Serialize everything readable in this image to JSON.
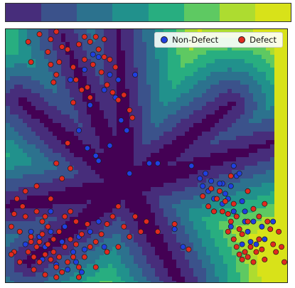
{
  "colorbar": {
    "colors": [
      "#472d7b",
      "#3b528b",
      "#2c728e",
      "#21918c",
      "#28ae80",
      "#5ec962",
      "#addc30",
      "#d8e219"
    ]
  },
  "palette": {
    "background_levels": [
      "#440154",
      "#472d7b",
      "#3b528b",
      "#2c728e",
      "#21918c",
      "#28ae80",
      "#5ec962",
      "#addc30",
      "#d8e219"
    ],
    "non_defect_color": "#1f3fe0",
    "defect_color": "#e02a1f"
  },
  "legend": {
    "non_defect_label": "Non-Defect",
    "defect_label": "Defect",
    "placement": "top-right"
  },
  "chart_data": {
    "type": "scatter",
    "title": "",
    "xlabel": "",
    "ylabel": "",
    "xlim": [
      0,
      100
    ],
    "ylim": [
      0,
      100
    ],
    "grid": false,
    "axes_ticks": "none",
    "background": "filled decision-region contours, 8 levels",
    "series": [
      {
        "name": "Non-Defect",
        "points": [
          [
            31,
            90
          ],
          [
            28,
            84
          ],
          [
            33,
            89
          ],
          [
            37,
            82
          ],
          [
            40,
            80
          ],
          [
            35,
            76
          ],
          [
            39,
            73
          ],
          [
            30,
            70
          ],
          [
            41,
            64
          ],
          [
            43,
            60
          ],
          [
            37,
            54
          ],
          [
            26,
            60
          ],
          [
            29,
            53
          ],
          [
            32,
            50
          ],
          [
            51,
            47
          ],
          [
            54,
            47
          ],
          [
            44,
            43
          ],
          [
            33,
            48
          ],
          [
            23,
            80
          ],
          [
            46,
            82
          ],
          [
            26,
            18
          ],
          [
            35,
            14
          ],
          [
            33,
            24
          ],
          [
            66,
            46
          ],
          [
            69,
            41
          ],
          [
            71,
            43
          ],
          [
            70,
            38
          ],
          [
            72,
            36
          ],
          [
            73,
            40
          ],
          [
            74,
            33
          ],
          [
            77,
            39
          ],
          [
            78,
            35
          ],
          [
            79,
            33
          ],
          [
            80,
            38
          ],
          [
            81,
            46
          ],
          [
            82,
            42
          ],
          [
            83,
            43
          ],
          [
            84,
            32
          ],
          [
            85,
            24
          ],
          [
            86,
            20
          ],
          [
            87,
            16
          ],
          [
            88,
            24
          ],
          [
            85,
            28
          ],
          [
            60,
            21
          ],
          [
            63,
            14
          ],
          [
            80,
            22
          ],
          [
            77,
            31
          ],
          [
            89,
            15
          ],
          [
            91,
            22
          ],
          [
            95,
            24
          ],
          [
            92,
            17
          ],
          [
            84,
            15
          ],
          [
            76,
            39
          ],
          [
            81,
            28
          ],
          [
            12,
            18
          ],
          [
            16,
            20
          ],
          [
            20,
            16
          ],
          [
            24,
            12
          ],
          [
            18,
            7
          ],
          [
            22,
            5
          ],
          [
            27,
            4
          ],
          [
            13,
            9
          ],
          [
            9,
            20
          ],
          [
            16,
            28
          ],
          [
            14,
            14
          ],
          [
            28,
            13
          ],
          [
            30,
            20
          ],
          [
            21,
            22
          ],
          [
            25,
            8
          ],
          [
            7,
            15
          ]
        ]
      },
      {
        "name": "Defect",
        "points": [
          [
            8,
            95
          ],
          [
            15,
            91
          ],
          [
            16,
            86
          ],
          [
            18,
            82
          ],
          [
            17,
            79
          ],
          [
            24,
            85
          ],
          [
            25,
            80
          ],
          [
            27,
            76
          ],
          [
            28,
            88
          ],
          [
            31,
            86
          ],
          [
            33,
            92
          ],
          [
            35,
            89
          ],
          [
            37,
            88
          ],
          [
            39,
            85
          ],
          [
            29,
            77
          ],
          [
            30,
            73
          ],
          [
            24,
            71
          ],
          [
            22,
            92
          ],
          [
            26,
            94
          ],
          [
            28,
            97
          ],
          [
            30,
            95
          ],
          [
            32,
            97
          ],
          [
            35,
            96
          ],
          [
            34,
            83
          ],
          [
            36,
            78
          ],
          [
            38,
            75
          ],
          [
            40,
            72
          ],
          [
            42,
            74
          ],
          [
            44,
            68
          ],
          [
            45,
            65
          ],
          [
            20,
            93
          ],
          [
            19,
            87
          ],
          [
            12,
            98
          ],
          [
            9,
            87
          ],
          [
            16,
            96
          ],
          [
            18,
            99
          ],
          [
            22,
            55
          ],
          [
            23,
            45
          ],
          [
            11,
            38
          ],
          [
            20,
            41
          ],
          [
            18,
            47
          ],
          [
            4,
            33
          ],
          [
            6,
            30
          ],
          [
            11,
            28
          ],
          [
            14,
            26
          ],
          [
            2,
            22
          ],
          [
            5,
            20
          ],
          [
            9,
            18
          ],
          [
            12,
            16
          ],
          [
            15,
            15
          ],
          [
            17,
            12
          ],
          [
            19,
            10
          ],
          [
            21,
            14
          ],
          [
            23,
            17
          ],
          [
            25,
            15
          ],
          [
            27,
            19
          ],
          [
            29,
            23
          ],
          [
            8,
            12
          ],
          [
            10,
            10
          ],
          [
            12,
            8
          ],
          [
            14,
            11
          ],
          [
            16,
            9
          ],
          [
            18,
            6
          ],
          [
            20,
            4
          ],
          [
            22,
            8
          ],
          [
            24,
            10
          ],
          [
            26,
            6
          ],
          [
            11,
            14
          ],
          [
            13,
            19
          ],
          [
            15,
            22
          ],
          [
            17,
            17
          ],
          [
            19,
            20
          ],
          [
            21,
            26
          ],
          [
            23,
            28
          ],
          [
            25,
            24
          ],
          [
            28,
            10
          ],
          [
            30,
            14
          ],
          [
            32,
            16
          ],
          [
            34,
            19
          ],
          [
            36,
            23
          ],
          [
            38,
            26
          ],
          [
            40,
            30
          ],
          [
            42,
            22
          ],
          [
            13,
            24
          ],
          [
            9,
            16
          ],
          [
            7,
            26
          ],
          [
            3,
            12
          ],
          [
            5,
            8
          ],
          [
            10,
            5
          ],
          [
            14,
            3
          ],
          [
            18,
            2
          ],
          [
            26,
            2
          ],
          [
            32,
            6
          ],
          [
            36,
            12
          ],
          [
            40,
            14
          ],
          [
            44,
            18
          ],
          [
            70,
            34
          ],
          [
            72,
            30
          ],
          [
            74,
            28
          ],
          [
            75,
            33
          ],
          [
            76,
            36
          ],
          [
            78,
            32
          ],
          [
            79,
            27
          ],
          [
            80,
            24
          ],
          [
            81,
            31
          ],
          [
            82,
            26
          ],
          [
            83,
            21
          ],
          [
            84,
            19
          ],
          [
            85,
            12
          ],
          [
            86,
            10
          ],
          [
            87,
            14
          ],
          [
            88,
            8
          ],
          [
            89,
            12
          ],
          [
            90,
            17
          ],
          [
            91,
            13
          ],
          [
            92,
            9
          ],
          [
            93,
            24
          ],
          [
            94,
            21
          ],
          [
            95,
            15
          ],
          [
            96,
            12
          ],
          [
            97,
            20
          ],
          [
            98,
            14
          ],
          [
            73,
            37
          ],
          [
            77,
            28
          ],
          [
            79,
            20
          ],
          [
            81,
            17
          ],
          [
            82,
            14
          ],
          [
            83,
            11
          ],
          [
            84,
            9
          ],
          [
            86,
            24
          ],
          [
            88,
            29
          ],
          [
            90,
            26
          ],
          [
            92,
            31
          ],
          [
            80,
            42
          ],
          [
            86,
            36
          ],
          [
            2,
            11
          ],
          [
            99,
            8
          ],
          [
            65,
            13
          ],
          [
            60,
            23
          ],
          [
            54,
            20
          ],
          [
            50,
            24
          ],
          [
            48,
            20
          ],
          [
            46,
            26
          ],
          [
            3,
            27
          ],
          [
            7,
            36
          ],
          [
            16,
            33
          ]
        ]
      }
    ]
  }
}
